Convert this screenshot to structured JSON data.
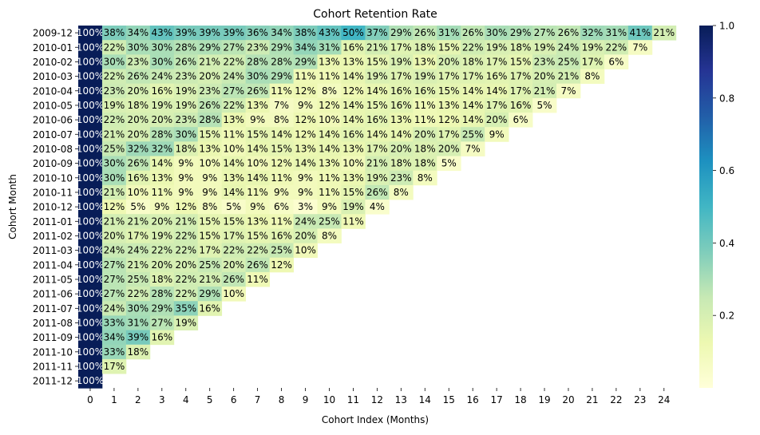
{
  "chart_data": {
    "type": "heatmap",
    "title": "Cohort Retention Rate",
    "xlabel": "Cohort Index (Months)",
    "ylabel": "Cohort Month",
    "colormap": "YlGnBu",
    "value_range": [
      0.0,
      1.0
    ],
    "colorbar_ticks": [
      "0.2",
      "0.4",
      "0.6",
      "0.8",
      "1.0"
    ],
    "colorbar_tick_values": [
      0.2,
      0.4,
      0.6,
      0.8,
      1.0
    ],
    "x_categories": [
      "0",
      "1",
      "2",
      "3",
      "4",
      "5",
      "6",
      "7",
      "8",
      "9",
      "10",
      "11",
      "12",
      "13",
      "14",
      "15",
      "16",
      "17",
      "18",
      "19",
      "20",
      "21",
      "22",
      "23",
      "24"
    ],
    "y_categories": [
      "2009-12",
      "2010-01",
      "2010-02",
      "2010-03",
      "2010-04",
      "2010-05",
      "2010-06",
      "2010-07",
      "2010-08",
      "2010-09",
      "2010-10",
      "2010-11",
      "2010-12",
      "2011-01",
      "2011-02",
      "2011-03",
      "2011-04",
      "2011-05",
      "2011-06",
      "2011-07",
      "2011-08",
      "2011-09",
      "2011-10",
      "2011-11",
      "2011-12"
    ],
    "value_format": "percent",
    "values": [
      [
        100,
        38,
        34,
        43,
        39,
        39,
        39,
        36,
        34,
        38,
        43,
        50,
        37,
        29,
        26,
        31,
        26,
        30,
        29,
        27,
        26,
        32,
        31,
        41,
        21
      ],
      [
        100,
        22,
        30,
        30,
        28,
        29,
        27,
        23,
        29,
        34,
        31,
        16,
        21,
        17,
        18,
        15,
        22,
        19,
        18,
        19,
        24,
        19,
        22,
        7
      ],
      [
        100,
        30,
        23,
        30,
        26,
        21,
        22,
        28,
        28,
        29,
        13,
        13,
        15,
        19,
        13,
        20,
        18,
        17,
        15,
        23,
        25,
        17,
        6
      ],
      [
        100,
        22,
        26,
        24,
        23,
        20,
        24,
        30,
        29,
        11,
        11,
        14,
        19,
        17,
        19,
        17,
        17,
        16,
        17,
        20,
        21,
        8
      ],
      [
        100,
        23,
        20,
        16,
        19,
        23,
        27,
        26,
        11,
        12,
        8,
        12,
        14,
        16,
        16,
        15,
        14,
        14,
        17,
        21,
        7
      ],
      [
        100,
        19,
        18,
        19,
        19,
        26,
        22,
        13,
        7,
        9,
        12,
        14,
        15,
        16,
        11,
        13,
        14,
        17,
        16,
        5
      ],
      [
        100,
        22,
        20,
        20,
        23,
        28,
        13,
        9,
        8,
        12,
        10,
        14,
        16,
        13,
        11,
        12,
        14,
        20,
        6
      ],
      [
        100,
        21,
        20,
        28,
        30,
        15,
        11,
        15,
        14,
        12,
        14,
        16,
        14,
        14,
        20,
        17,
        25,
        9
      ],
      [
        100,
        25,
        32,
        32,
        18,
        13,
        10,
        14,
        15,
        13,
        14,
        13,
        17,
        20,
        18,
        20,
        7
      ],
      [
        100,
        30,
        26,
        14,
        9,
        10,
        14,
        10,
        12,
        14,
        13,
        10,
        21,
        18,
        18,
        5
      ],
      [
        100,
        30,
        16,
        13,
        9,
        9,
        13,
        14,
        11,
        9,
        11,
        13,
        19,
        23,
        8
      ],
      [
        100,
        21,
        10,
        11,
        9,
        9,
        14,
        11,
        9,
        9,
        11,
        15,
        26,
        8
      ],
      [
        100,
        12,
        5,
        9,
        12,
        8,
        5,
        9,
        6,
        3,
        9,
        19,
        4
      ],
      [
        100,
        21,
        21,
        20,
        21,
        15,
        15,
        13,
        11,
        24,
        25,
        11
      ],
      [
        100,
        20,
        17,
        19,
        22,
        15,
        17,
        15,
        16,
        20,
        8
      ],
      [
        100,
        24,
        24,
        22,
        22,
        17,
        22,
        22,
        25,
        10
      ],
      [
        100,
        27,
        21,
        20,
        20,
        25,
        20,
        26,
        12
      ],
      [
        100,
        27,
        25,
        18,
        22,
        21,
        26,
        11
      ],
      [
        100,
        27,
        22,
        28,
        22,
        29,
        10
      ],
      [
        100,
        24,
        30,
        29,
        35,
        16
      ],
      [
        100,
        33,
        31,
        27,
        19
      ],
      [
        100,
        34,
        39,
        16
      ],
      [
        100,
        33,
        18
      ],
      [
        100,
        17
      ],
      [
        100
      ]
    ]
  }
}
